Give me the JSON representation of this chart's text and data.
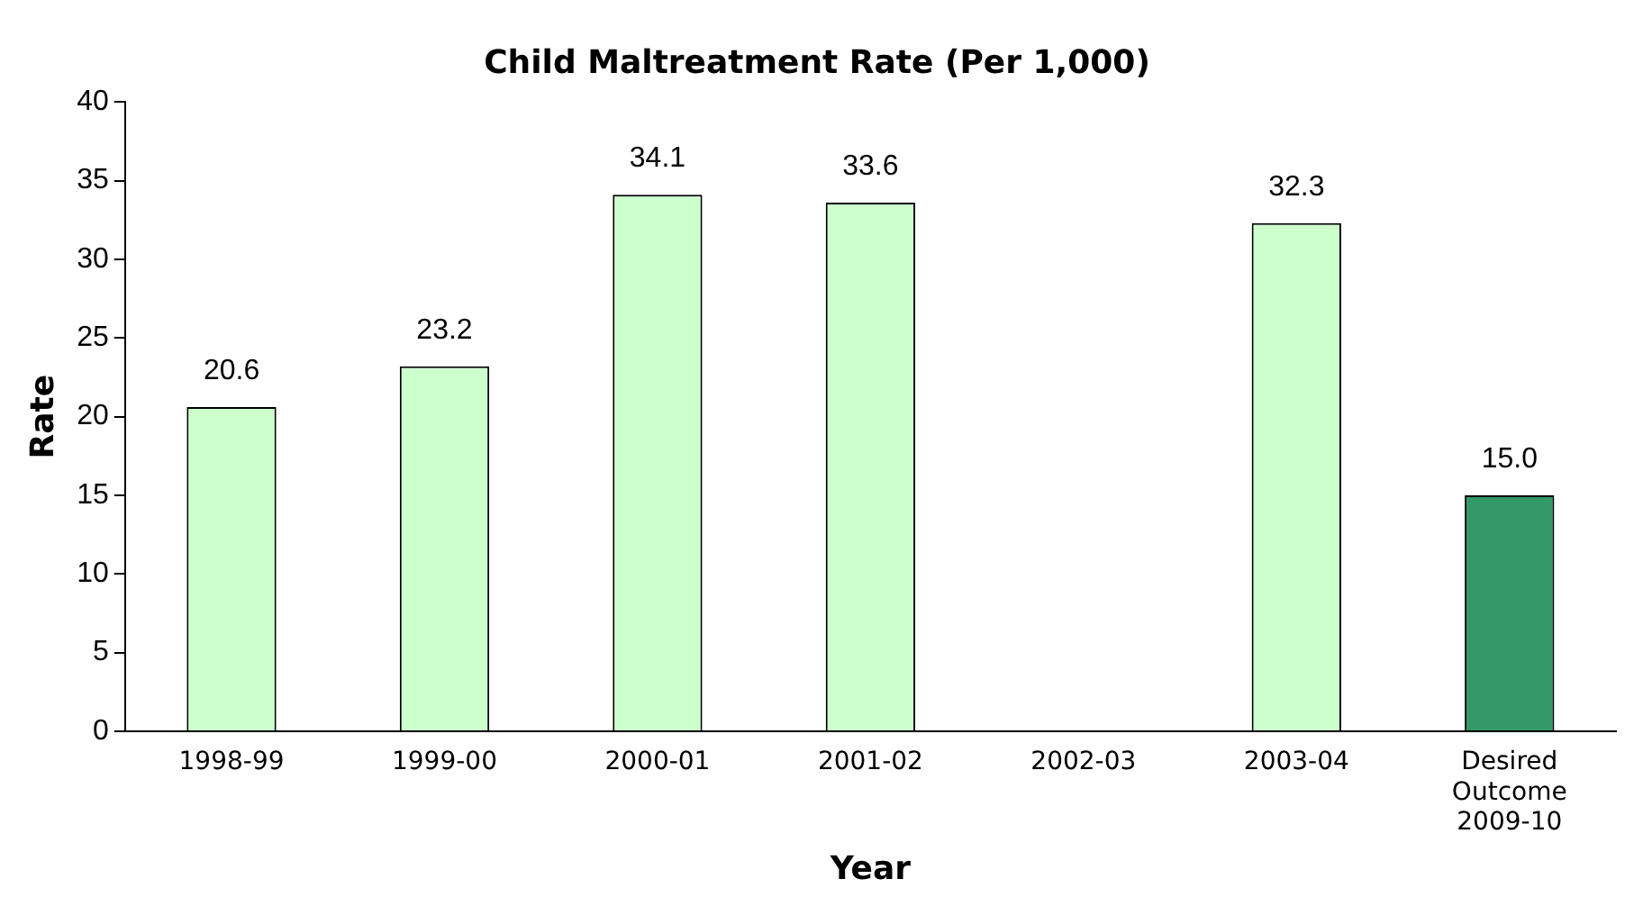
{
  "chart_data": {
    "type": "bar",
    "title": "Child Maltreatment Rate (Per 1,000)",
    "xlabel": "Year",
    "ylabel": "Rate",
    "categories": [
      "1998-99",
      "1999-00",
      "2000-01",
      "2001-02",
      "2002-03",
      "2003-04",
      "Desired Outcome 2009-10"
    ],
    "values": [
      20.6,
      23.2,
      34.1,
      33.6,
      null,
      32.3,
      15.0
    ],
    "colors": [
      "#ccffcc",
      "#ccffcc",
      "#ccffcc",
      "#ccffcc",
      "#ccffcc",
      "#ccffcc",
      "#339966"
    ],
    "value_labels": [
      "20.6",
      "23.2",
      "34.1",
      "33.6",
      null,
      "32.3",
      "15.0"
    ],
    "ylim": [
      0,
      40
    ],
    "yticks": [
      0,
      5,
      10,
      15,
      20,
      25,
      30,
      35,
      40
    ],
    "grid": false,
    "legend": false
  }
}
